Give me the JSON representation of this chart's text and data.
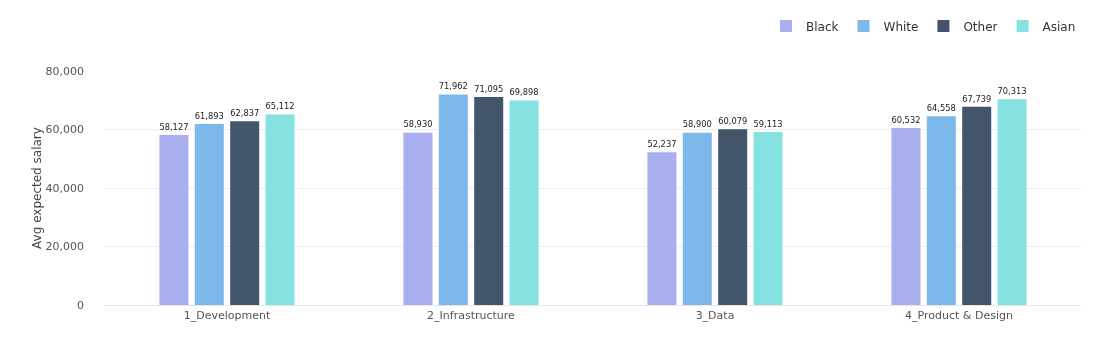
{
  "chart_data": {
    "type": "bar",
    "ylabel": "Avg expected salary",
    "categories": [
      "1_Development",
      "2_Infrastructure",
      "3_Data",
      "4_Product & Design"
    ],
    "series": [
      {
        "name": "Black",
        "color": "#a9aeef",
        "values": [
          58127,
          58930,
          52237,
          60532
        ],
        "value_labels": [
          "58,127",
          "58,930",
          "52,237",
          "60,532"
        ]
      },
      {
        "name": "White",
        "color": "#7db8ea",
        "values": [
          61893,
          71962,
          58900,
          64558
        ],
        "value_labels": [
          "61,893",
          "71,962",
          "58,900",
          "64,558"
        ]
      },
      {
        "name": "Other",
        "color": "#42556b",
        "values": [
          62837,
          71095,
          60079,
          67739
        ],
        "value_labels": [
          "62,837",
          "71,095",
          "60,079",
          "67,739"
        ]
      },
      {
        "name": "Asian",
        "color": "#85e2e1",
        "values": [
          65112,
          69898,
          59113,
          70313
        ],
        "value_labels": [
          "65,112",
          "69,898",
          "59,113",
          "70,313"
        ]
      }
    ],
    "ylim": [
      0,
      80000
    ],
    "yticks": [
      {
        "value": 0,
        "label": "0"
      },
      {
        "value": 20000,
        "label": "20,000"
      },
      {
        "value": 40000,
        "label": "40,000"
      },
      {
        "value": 60000,
        "label": "60,000"
      },
      {
        "value": 80000,
        "label": "80,000"
      }
    ],
    "grid": "y",
    "legend": "top right"
  }
}
